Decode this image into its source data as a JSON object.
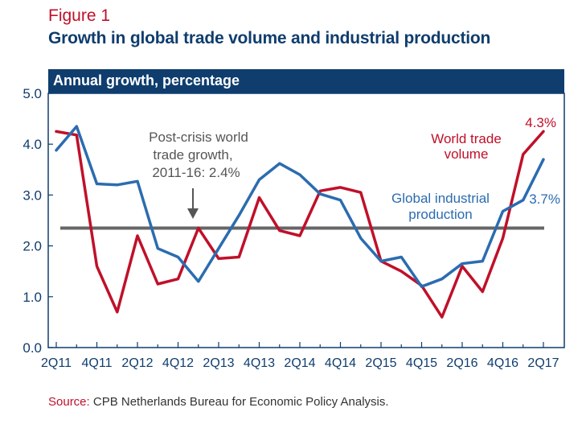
{
  "figure_label": "Figure 1",
  "title": "Growth in global trade volume and industrial production",
  "subtitle": "Annual growth, percentage",
  "source_label": "Source:",
  "source_text": "CPB Netherlands Bureau for Economic Policy Analysis.",
  "colors": {
    "trade": "#c0102a",
    "industrial": "#2b6cb0",
    "average": "#666666",
    "header": "#0f3d6e"
  },
  "chart_data": {
    "type": "line",
    "title": "Growth in global trade volume and industrial production",
    "ylabel": "Annual growth, percentage",
    "xlabel": "",
    "ylim": [
      0,
      5
    ],
    "yticks": [
      "0.0",
      "1.0",
      "2.0",
      "3.0",
      "4.0",
      "5.0"
    ],
    "x": [
      "2Q11",
      "3Q11",
      "4Q11",
      "1Q12",
      "2Q12",
      "3Q12",
      "4Q12",
      "1Q13",
      "2Q13",
      "3Q13",
      "4Q13",
      "1Q14",
      "2Q14",
      "3Q14",
      "4Q14",
      "1Q15",
      "2Q15",
      "3Q15",
      "4Q15",
      "1Q16",
      "2Q16",
      "3Q16",
      "4Q16",
      "1Q17",
      "2Q17"
    ],
    "xtick_labels": [
      "2Q11",
      "4Q11",
      "2Q12",
      "4Q12",
      "2Q13",
      "4Q13",
      "2Q14",
      "4Q14",
      "2Q15",
      "4Q15",
      "2Q16",
      "4Q16",
      "2Q17"
    ],
    "series": [
      {
        "name": "World trade volume",
        "color": "#c0102a",
        "values": [
          4.25,
          4.18,
          1.6,
          0.7,
          2.2,
          1.25,
          1.35,
          2.35,
          1.75,
          1.78,
          2.95,
          2.3,
          2.2,
          3.08,
          3.15,
          3.05,
          1.7,
          1.5,
          1.22,
          0.6,
          1.6,
          1.1,
          2.15,
          3.8,
          4.25
        ]
      },
      {
        "name": "Global industrial production",
        "color": "#2b6cb0",
        "values": [
          3.88,
          4.35,
          3.22,
          3.2,
          3.27,
          1.95,
          1.78,
          1.3,
          1.95,
          2.6,
          3.3,
          3.62,
          3.4,
          3.02,
          2.9,
          2.15,
          1.7,
          1.78,
          1.2,
          1.35,
          1.65,
          1.7,
          2.68,
          2.9,
          3.7
        ]
      }
    ],
    "reference_line": {
      "value": 2.35,
      "color": "#666666"
    },
    "annotations": {
      "reference_line_text": [
        "Post-crisis world",
        "trade growth,",
        "2011-16: 2.4%"
      ],
      "trade_label": [
        "World trade",
        "volume"
      ],
      "trade_value": "4.3%",
      "industrial_label": [
        "Global industrial",
        "production"
      ],
      "industrial_value": "3.7%"
    },
    "grid": false,
    "legend": "none"
  }
}
